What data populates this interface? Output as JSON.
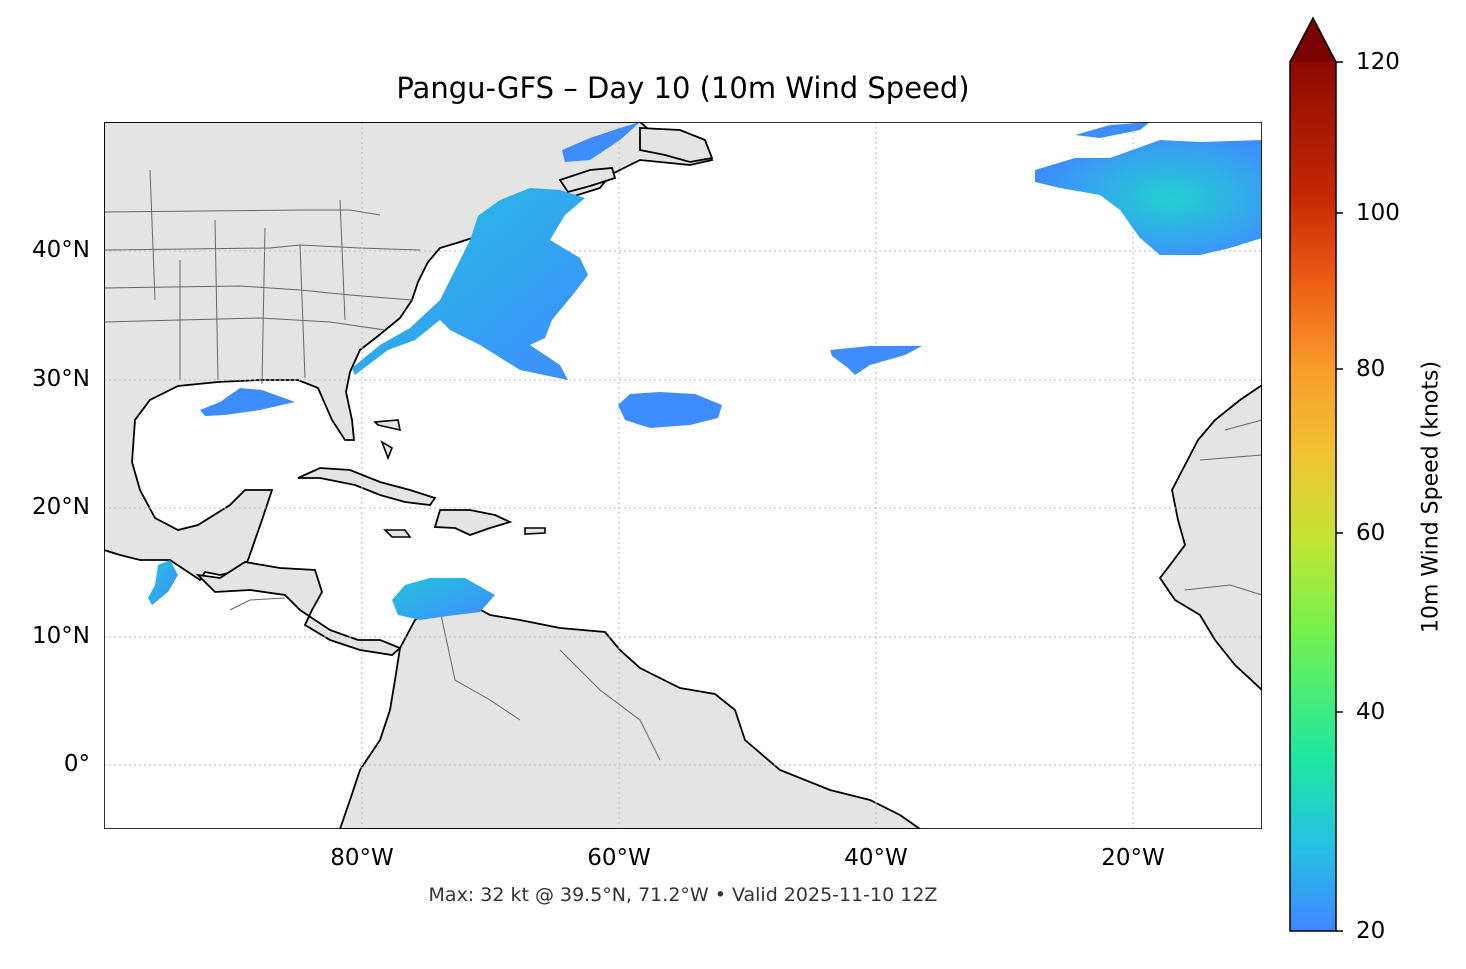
{
  "title": "Pangu-GFS – Day 10 (10m Wind Speed)",
  "footer": "Max: 32 kt @ 39.5°N, 71.2°W • Valid 2025-11-10 12Z",
  "colorbar": {
    "label": "10m Wind Speed (knots)",
    "ticks": [
      "20",
      "40",
      "60",
      "80",
      "100",
      "120"
    ],
    "min": 20,
    "max": 120,
    "extend": "max",
    "colors": [
      "#3f87ff",
      "#25c2e3",
      "#1ee8a0",
      "#79f04a",
      "#c3e534",
      "#f1c233",
      "#f99a2a",
      "#ec5b14",
      "#c22703",
      "#8e0a01",
      "#7a0403"
    ]
  },
  "axes": {
    "lat_labels": [
      "40°N",
      "30°N",
      "20°N",
      "10°N",
      "0°"
    ],
    "lon_labels": [
      "80°W",
      "60°W",
      "40°W",
      "20°W"
    ],
    "extent": {
      "lon_min": -100,
      "lon_max": -10,
      "lat_min": -5,
      "lat_max": 50
    },
    "gridlines": true
  },
  "colors": {
    "land": "#e4e4e4",
    "coastline": "#000000",
    "border": "#666666",
    "wind_low": "#3f8cff",
    "wind_mid": "#22c0de"
  },
  "wind_areas": [
    {
      "region": "US East Coast / Gulf Stream",
      "max_kt": 32
    },
    {
      "region": "Northeast Atlantic",
      "max_kt": 30
    },
    {
      "region": "Central Atlantic south of Bermuda",
      "max_kt": 22
    },
    {
      "region": "Caribbean Sea",
      "max_kt": 24
    },
    {
      "region": "Gulf of Mexico",
      "max_kt": 22
    },
    {
      "region": "Gulf of Tehuantepec",
      "max_kt": 26
    }
  ]
}
